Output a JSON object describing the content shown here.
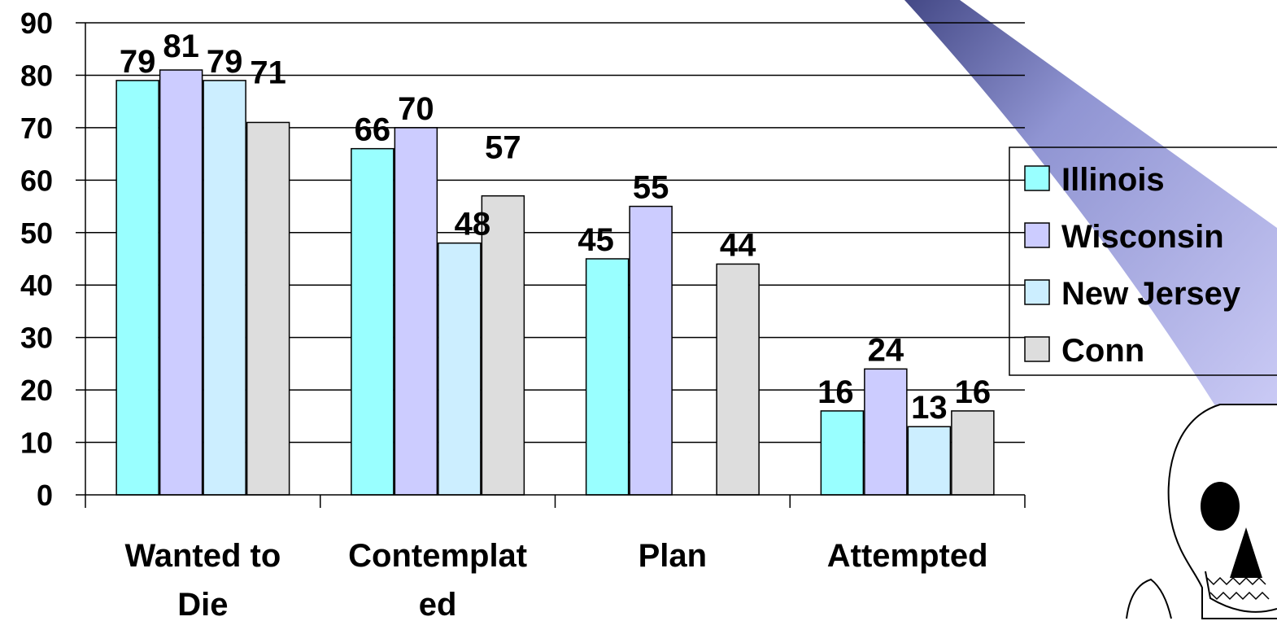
{
  "chart_data": {
    "type": "bar",
    "categories": [
      [
        "Wanted to",
        "Die"
      ],
      [
        "Contemplat",
        "ed"
      ],
      [
        "Plan"
      ],
      [
        "Attempted"
      ]
    ],
    "series": [
      {
        "name": "Illinois",
        "values": [
          79,
          66,
          45,
          16
        ],
        "color": "#99ffff"
      },
      {
        "name": "Wisconsin",
        "values": [
          81,
          70,
          55,
          24
        ],
        "color": "#ccccff"
      },
      {
        "name": "New Jersey",
        "values": [
          79,
          48,
          null,
          13
        ],
        "color": "#cceeff"
      },
      {
        "name": "Conn",
        "values": [
          71,
          57,
          44,
          16
        ],
        "color": "#dddddd"
      }
    ],
    "ylim": [
      0,
      90
    ],
    "yticks": [
      0,
      10,
      20,
      30,
      40,
      50,
      60,
      70,
      80,
      90
    ],
    "grid": true,
    "legend_position": "right",
    "title": "",
    "xlabel": "",
    "ylabel": ""
  },
  "decoration": {
    "callout_color": "#5a5fa0",
    "callout_fill_light": "#c8c8f0",
    "skull_icon": "skull-icon"
  }
}
